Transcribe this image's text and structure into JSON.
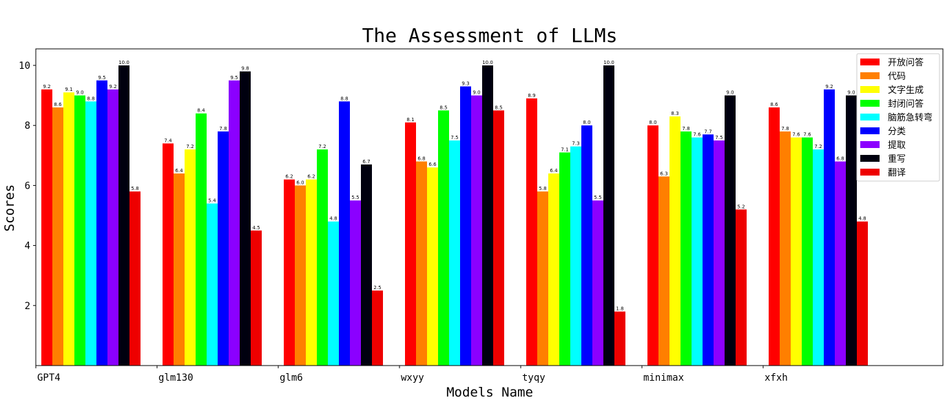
{
  "chart_data": {
    "type": "bar",
    "title": "The Assessment of LLMs",
    "xlabel": "Models Name",
    "ylabel": "Scores",
    "categories": [
      "GPT4",
      "glm130",
      "glm6",
      "wxyy",
      "tyqy",
      "minimax",
      "xfxh"
    ],
    "yticks": [
      2,
      4,
      6,
      8,
      10
    ],
    "ylim": [
      0,
      10.55
    ],
    "legend_position": "top-right",
    "series": [
      {
        "name": "开放问答",
        "color": "#ff0000",
        "values": [
          9.2,
          7.4,
          6.2,
          8.1,
          8.9,
          8.0,
          8.6
        ]
      },
      {
        "name": "代码",
        "color": "#ff7f00",
        "values": [
          8.6,
          6.4,
          6.0,
          6.8,
          5.8,
          6.3,
          7.8
        ]
      },
      {
        "name": "文字生成",
        "color": "#ffff00",
        "values": [
          9.1,
          7.2,
          6.2,
          6.6,
          6.4,
          8.3,
          7.6
        ]
      },
      {
        "name": "封闭问答",
        "color": "#00ff00",
        "values": [
          9.0,
          8.4,
          7.2,
          8.5,
          7.1,
          7.8,
          7.6
        ]
      },
      {
        "name": "脑筋急转弯",
        "color": "#00ffff",
        "values": [
          8.8,
          5.4,
          4.8,
          7.5,
          7.3,
          7.6,
          7.2
        ]
      },
      {
        "name": "分类",
        "color": "#0000ff",
        "values": [
          9.5,
          7.8,
          8.8,
          9.3,
          8.0,
          7.7,
          9.2
        ]
      },
      {
        "name": "提取",
        "color": "#8b00ff",
        "values": [
          9.2,
          9.5,
          5.5,
          9.0,
          5.5,
          7.5,
          6.8
        ]
      },
      {
        "name": "重写",
        "color": "#00000f",
        "values": [
          10.0,
          9.8,
          6.7,
          10.0,
          10.0,
          9.0,
          9.0
        ]
      },
      {
        "name": "翻译",
        "color": "#ee0000",
        "values": [
          5.8,
          4.5,
          2.5,
          8.5,
          1.8,
          5.2,
          4.8
        ]
      }
    ]
  }
}
